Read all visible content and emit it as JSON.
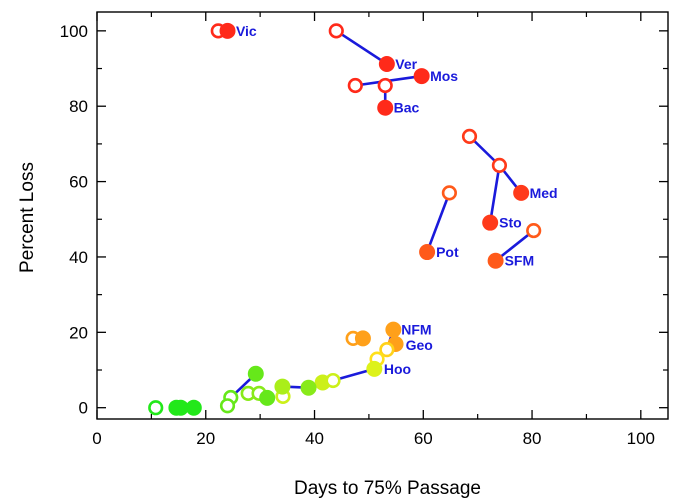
{
  "chart_data": {
    "type": "scatter",
    "title": "",
    "xlabel": "Days to 75% Passage",
    "ylabel": "Percent Loss",
    "xlim": [
      0,
      105
    ],
    "ylim": [
      -3,
      105
    ],
    "xticks": [
      0,
      20,
      40,
      60,
      80,
      100
    ],
    "yticks": [
      0,
      20,
      40,
      60,
      80,
      100
    ],
    "grid": false,
    "label_color": "#1a1adb",
    "line_color": "#1a1adb",
    "points": [
      {
        "x": 22.3,
        "y": 100,
        "color": "#ff2a1a",
        "filled": false
      },
      {
        "x": 24,
        "y": 100,
        "color": "#ff2a1a",
        "filled": true
      },
      {
        "x": 44,
        "y": 100,
        "color": "#ff2a1a",
        "filled": false
      },
      {
        "x": 53.3,
        "y": 91.2,
        "color": "#ff2a1a",
        "filled": true
      },
      {
        "x": 47.5,
        "y": 85.5,
        "color": "#ff2a1a",
        "filled": false
      },
      {
        "x": 53,
        "y": 85.5,
        "color": "#ff2a1a",
        "filled": false
      },
      {
        "x": 59.7,
        "y": 88,
        "color": "#ff2a1a",
        "filled": true
      },
      {
        "x": 53,
        "y": 79.6,
        "color": "#ff2a1a",
        "filled": true
      },
      {
        "x": 68.5,
        "y": 72,
        "color": "#ff3a1a",
        "filled": false
      },
      {
        "x": 74,
        "y": 64.3,
        "color": "#ff3a1a",
        "filled": false
      },
      {
        "x": 78,
        "y": 57,
        "color": "#ff3a1a",
        "filled": true
      },
      {
        "x": 72.3,
        "y": 49.1,
        "color": "#ff3a1a",
        "filled": true
      },
      {
        "x": 64.8,
        "y": 57,
        "color": "#ff5a1a",
        "filled": false
      },
      {
        "x": 60.7,
        "y": 41.3,
        "color": "#ff5a1a",
        "filled": true
      },
      {
        "x": 80.3,
        "y": 47,
        "color": "#ff5a1a",
        "filled": false
      },
      {
        "x": 73.3,
        "y": 39,
        "color": "#ff5a1a",
        "filled": true
      },
      {
        "x": 47.1,
        "y": 18.4,
        "color": "#ffa01a",
        "filled": false
      },
      {
        "x": 48.9,
        "y": 18.4,
        "color": "#ffa01a",
        "filled": true
      },
      {
        "x": 54.5,
        "y": 20.7,
        "color": "#ffa01a",
        "filled": true
      },
      {
        "x": 54.9,
        "y": 16.9,
        "color": "#ffa01a",
        "filled": true
      },
      {
        "x": 53.3,
        "y": 15.4,
        "color": "#ffd21a",
        "filled": false
      },
      {
        "x": 51.5,
        "y": 12.9,
        "color": "#ffe01a",
        "filled": false
      },
      {
        "x": 51,
        "y": 10.3,
        "color": "#ddf21a",
        "filled": true
      },
      {
        "x": 41.5,
        "y": 6.7,
        "color": "#ccf01a",
        "filled": true
      },
      {
        "x": 43.4,
        "y": 7.2,
        "color": "#ccf01a",
        "filled": false
      },
      {
        "x": 34.2,
        "y": 3,
        "color": "#ccf01a",
        "filled": false
      },
      {
        "x": 34.1,
        "y": 5.6,
        "color": "#aaee1a",
        "filled": true
      },
      {
        "x": 38.9,
        "y": 5.3,
        "color": "#88ea1a",
        "filled": true
      },
      {
        "x": 29.2,
        "y": 9,
        "color": "#66e81a",
        "filled": true
      },
      {
        "x": 27.8,
        "y": 3.8,
        "color": "#88ea1a",
        "filled": false
      },
      {
        "x": 29.8,
        "y": 3.8,
        "color": "#88ea1a",
        "filled": false
      },
      {
        "x": 31.3,
        "y": 2.6,
        "color": "#66e81a",
        "filled": true
      },
      {
        "x": 24.6,
        "y": 2.7,
        "color": "#66e81a",
        "filled": false
      },
      {
        "x": 24,
        "y": 0.5,
        "color": "#66e81a",
        "filled": false
      },
      {
        "x": 10.8,
        "y": 0,
        "color": "#22e81a",
        "filled": false
      },
      {
        "x": 14.6,
        "y": 0,
        "color": "#22e81a",
        "filled": true
      },
      {
        "x": 15.4,
        "y": 0,
        "color": "#22e81a",
        "filled": true
      },
      {
        "x": 17.8,
        "y": 0,
        "color": "#22e81a",
        "filled": true
      }
    ],
    "segments": [
      [
        44,
        100,
        53.3,
        91.2
      ],
      [
        47.5,
        85.5,
        59.7,
        88
      ],
      [
        53,
        85.5,
        53,
        79.6
      ],
      [
        68.5,
        72,
        74,
        64.3
      ],
      [
        74,
        64.3,
        78,
        57
      ],
      [
        74,
        64.3,
        72.3,
        49.1
      ],
      [
        64.8,
        57,
        60.7,
        41.3
      ],
      [
        80.3,
        47,
        73.3,
        39
      ],
      [
        53.3,
        15.4,
        54.5,
        20.7
      ],
      [
        53.3,
        15.4,
        54.9,
        16.9
      ],
      [
        51.5,
        12.9,
        53.3,
        15.4
      ],
      [
        51,
        10.3,
        51.5,
        12.9
      ],
      [
        43.4,
        7.2,
        51,
        10.3
      ],
      [
        34.1,
        5.6,
        38.9,
        5.3
      ],
      [
        34.2,
        3,
        34.1,
        5.6
      ],
      [
        29.8,
        3.8,
        31.3,
        2.6
      ],
      [
        24.6,
        2.7,
        29.2,
        9
      ],
      [
        24,
        0.5,
        24.6,
        2.7
      ]
    ],
    "annotations": [
      {
        "text": "Vic",
        "x": 25,
        "y": 100
      },
      {
        "text": "Ver",
        "x": 54.3,
        "y": 91.2
      },
      {
        "text": "Mos",
        "x": 60.7,
        "y": 88
      },
      {
        "text": "Bac",
        "x": 54,
        "y": 79.6
      },
      {
        "text": "Med",
        "x": 79,
        "y": 57
      },
      {
        "text": "Sto",
        "x": 73.4,
        "y": 49.1
      },
      {
        "text": "Pot",
        "x": 61.8,
        "y": 41.3
      },
      {
        "text": "SFM",
        "x": 74.4,
        "y": 39
      },
      {
        "text": "NFM",
        "x": 55.4,
        "y": 20.7
      },
      {
        "text": "Geo",
        "x": 56.2,
        "y": 16.6
      },
      {
        "text": "Hoo",
        "x": 52.2,
        "y": 10.3
      }
    ]
  }
}
